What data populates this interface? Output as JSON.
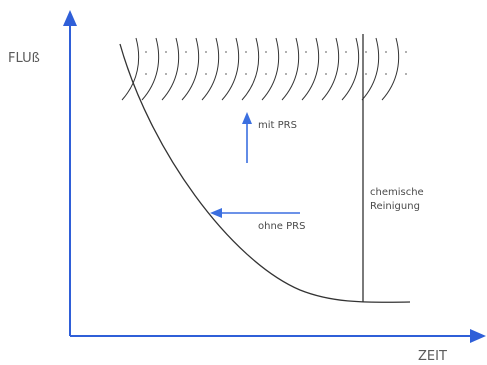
{
  "axes": {
    "y_label": "FLUß",
    "x_label": "ZEIT"
  },
  "annotations": {
    "with_prs": "mit PRS",
    "without_prs": "ohne PRS",
    "cleaning_line1": "chemische",
    "cleaning_line2": "Reinigung"
  },
  "colors": {
    "axis": "#2f5fd8",
    "arrow": "#3b6fe0",
    "curve": "#333333",
    "text": "#555555",
    "dots": "#999999"
  }
}
